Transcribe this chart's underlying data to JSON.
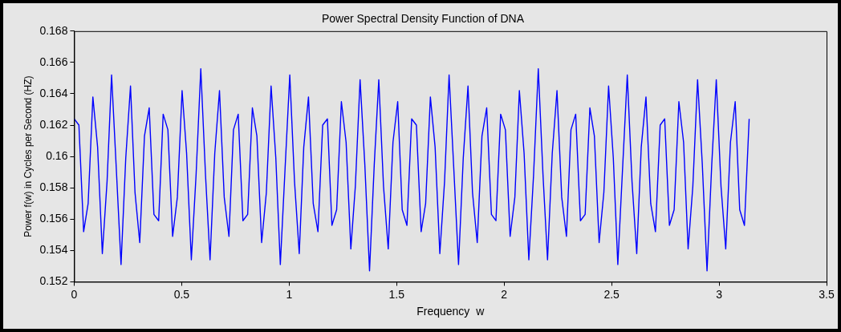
{
  "chart_data": {
    "type": "line",
    "title": "Power Spectral Density Function of DNA",
    "xlabel": "Frequency  w",
    "ylabel": "Power f(w) in Cycles per Second (HZ)",
    "xlim": [
      0,
      3.5
    ],
    "xticks": [
      0,
      0.5,
      1,
      1.5,
      2,
      2.5,
      3,
      3.5
    ],
    "ylim": [
      0.152,
      0.168
    ],
    "yticks": [
      0.152,
      0.154,
      0.156,
      0.158,
      0.16,
      0.162,
      0.164,
      0.166,
      0.168
    ],
    "grid": false,
    "legend": false,
    "marker": "none",
    "line_style": "solid",
    "x": [
      0,
      0.022,
      0.044,
      0.065,
      0.087,
      0.109,
      0.131,
      0.153,
      0.174,
      0.196,
      0.218,
      0.24,
      0.262,
      0.283,
      0.305,
      0.327,
      0.349,
      0.371,
      0.393,
      0.414,
      0.436,
      0.458,
      0.48,
      0.502,
      0.523,
      0.545,
      0.567,
      0.589,
      0.611,
      0.632,
      0.654,
      0.676,
      0.698,
      0.72,
      0.741,
      0.763,
      0.785,
      0.807,
      0.829,
      0.85,
      0.872,
      0.894,
      0.916,
      0.938,
      0.959,
      0.981,
      1.003,
      1.025,
      1.047,
      1.068,
      1.09,
      1.112,
      1.134,
      1.156,
      1.178,
      1.199,
      1.221,
      1.243,
      1.265,
      1.287,
      1.308,
      1.33,
      1.352,
      1.374,
      1.396,
      1.417,
      1.439,
      1.461,
      1.483,
      1.505,
      1.526,
      1.548,
      1.57,
      1.592,
      1.614,
      1.635,
      1.657,
      1.679,
      1.701,
      1.723,
      1.744,
      1.766,
      1.788,
      1.81,
      1.832,
      1.853,
      1.875,
      1.897,
      1.919,
      1.941,
      1.962,
      1.984,
      2.006,
      2.028,
      2.05,
      2.071,
      2.093,
      2.115,
      2.137,
      2.159,
      2.181,
      2.202,
      2.224,
      2.246,
      2.268,
      2.29,
      2.311,
      2.333,
      2.355,
      2.377,
      2.399,
      2.42,
      2.442,
      2.464,
      2.486,
      2.508,
      2.529,
      2.551,
      2.573,
      2.595,
      2.617,
      2.638,
      2.66,
      2.682,
      2.704,
      2.726,
      2.747,
      2.769,
      2.791,
      2.813,
      2.835,
      2.856,
      2.878,
      2.9,
      2.922,
      2.944,
      2.966,
      2.987,
      3.009,
      3.031,
      3.053,
      3.075,
      3.096,
      3.118,
      3.14
    ],
    "series": [
      {
        "color": "#0000ff",
        "values": [
          0.1624,
          0.162,
          0.1552,
          0.157,
          0.1638,
          0.1606,
          0.1538,
          0.1584,
          0.1652,
          0.1592,
          0.1531,
          0.1599,
          0.1645,
          0.1577,
          0.1545,
          0.1613,
          0.1631,
          0.1563,
          0.1559,
          0.1627,
          0.1617,
          0.1549,
          0.1574,
          0.1642,
          0.1602,
          0.1534,
          0.1588,
          0.1656,
          0.1588,
          0.1534,
          0.1602,
          0.1642,
          0.1574,
          0.1549,
          0.1617,
          0.1627,
          0.1559,
          0.1563,
          0.1631,
          0.1613,
          0.1545,
          0.1577,
          0.1645,
          0.1599,
          0.1531,
          0.1592,
          0.1652,
          0.1584,
          0.1538,
          0.1606,
          0.1638,
          0.157,
          0.1552,
          0.162,
          0.1624,
          0.1556,
          0.1566,
          0.1635,
          0.1609,
          0.1541,
          0.1581,
          0.1649,
          0.1595,
          0.1527,
          0.1595,
          0.1649,
          0.1581,
          0.1541,
          0.1609,
          0.1635,
          0.1566,
          0.1556,
          0.1624,
          0.162,
          0.1552,
          0.157,
          0.1638,
          0.1606,
          0.1538,
          0.1584,
          0.1652,
          0.1592,
          0.1531,
          0.1599,
          0.1645,
          0.1577,
          0.1545,
          0.1613,
          0.1631,
          0.1563,
          0.1559,
          0.1627,
          0.1617,
          0.1549,
          0.1574,
          0.1642,
          0.1602,
          0.1534,
          0.1588,
          0.1656,
          0.1588,
          0.1534,
          0.1602,
          0.1642,
          0.1574,
          0.1549,
          0.1617,
          0.1627,
          0.1559,
          0.1563,
          0.1631,
          0.1613,
          0.1545,
          0.1577,
          0.1645,
          0.1599,
          0.1531,
          0.1592,
          0.1652,
          0.1584,
          0.1538,
          0.1606,
          0.1638,
          0.157,
          0.1552,
          0.162,
          0.1624,
          0.1556,
          0.1566,
          0.1635,
          0.1609,
          0.1541,
          0.1581,
          0.1649,
          0.1595,
          0.1527,
          0.1595,
          0.1649,
          0.1581,
          0.1541,
          0.1609,
          0.1635,
          0.1566,
          0.1556,
          0.1624
        ]
      }
    ]
  }
}
